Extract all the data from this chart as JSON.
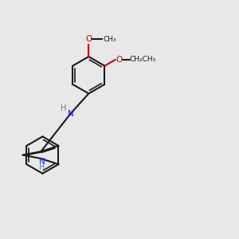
{
  "background_color": "#e8e8e8",
  "bond_color": "#1a1a1a",
  "nitrogen_color": "#1a1aff",
  "oxygen_color": "#cc0000",
  "nh_indole_color": "#4a9090",
  "nh_amine_color": "#4a9090",
  "figsize": [
    3.0,
    3.0
  ],
  "dpi": 100,
  "xlim": [
    0,
    10
  ],
  "ylim": [
    0,
    10
  ]
}
